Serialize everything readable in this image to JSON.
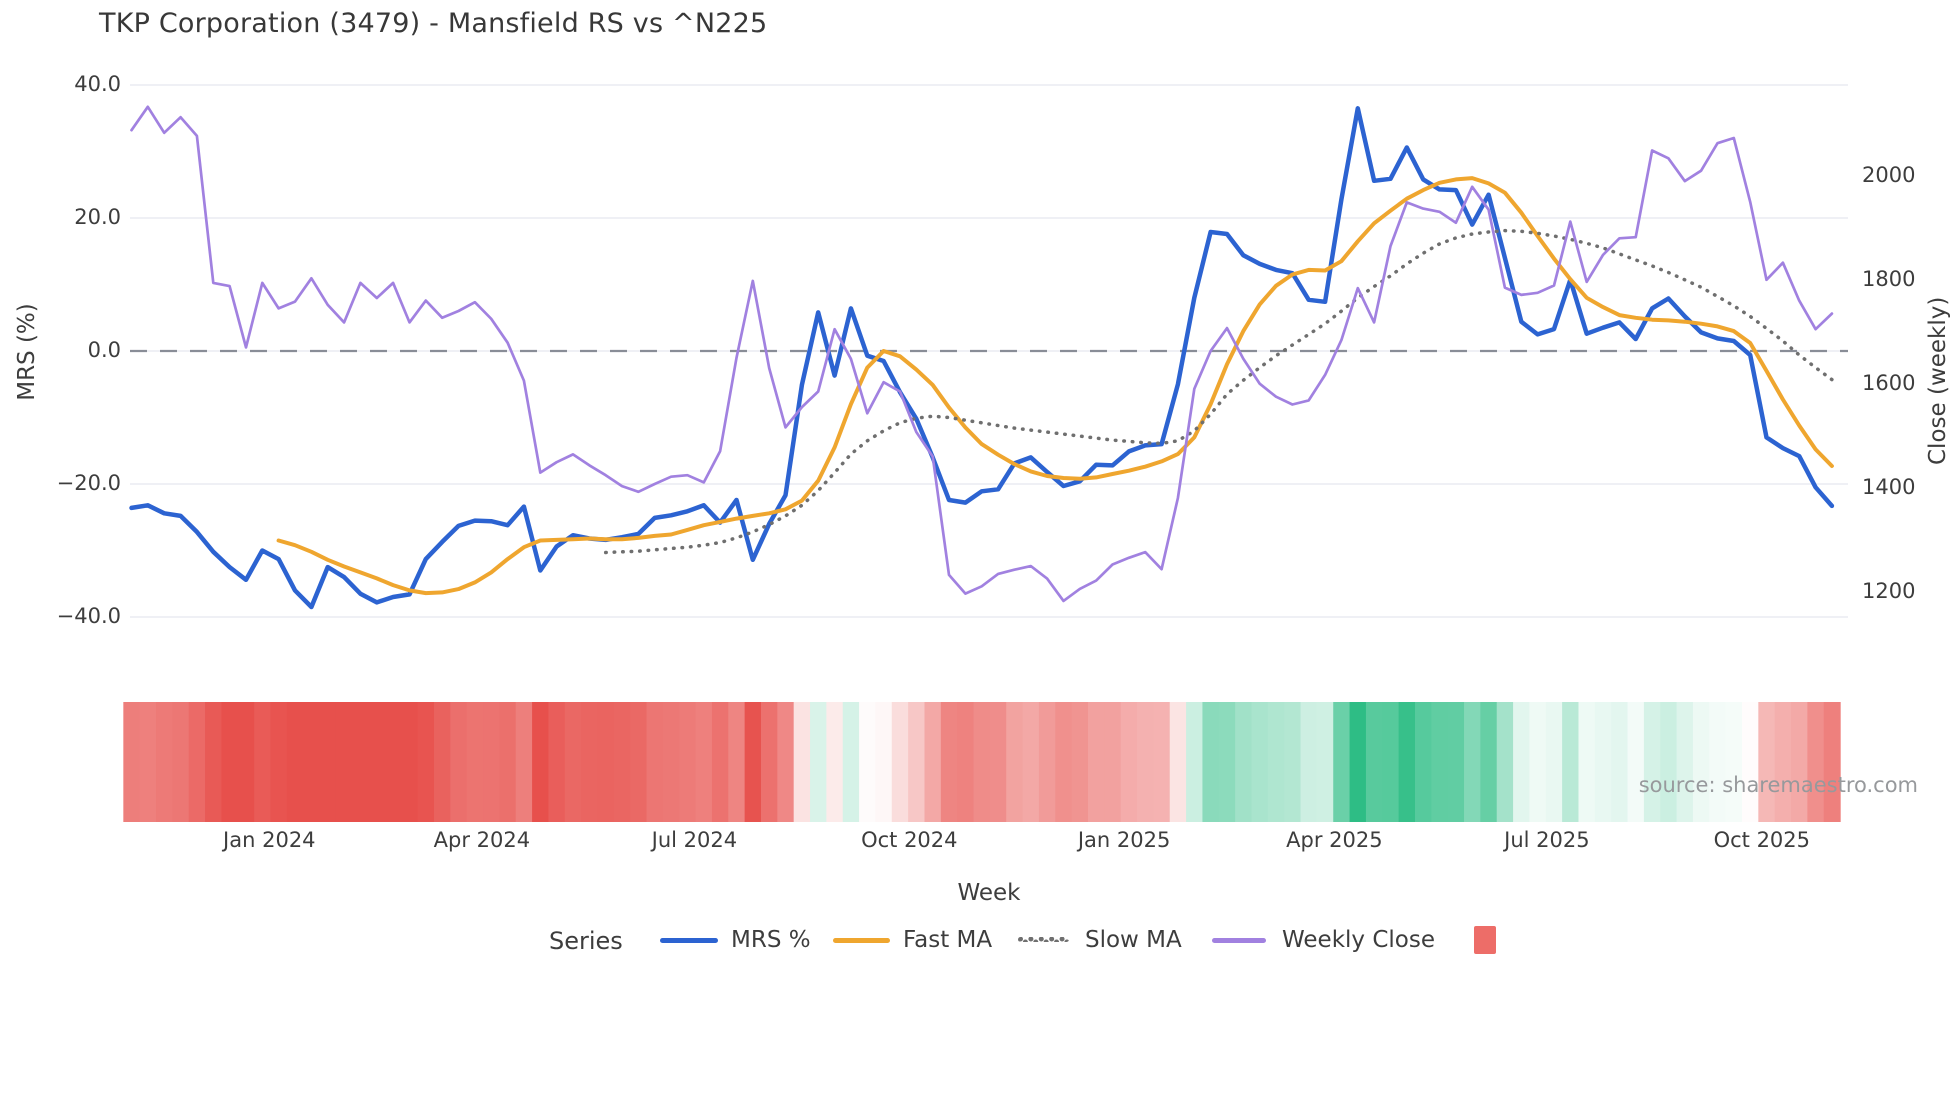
{
  "title": "TKP Corporation (3479) - Mansfield RS vs ^N225",
  "source": "source: sharemaestro.com",
  "axes": {
    "left": {
      "title": "MRS (%)",
      "tick_labels": [
        "40.0",
        "20.0",
        "0.0",
        "−20.0",
        "−40.0"
      ],
      "tick_values": [
        40,
        20,
        0,
        -20,
        -40
      ]
    },
    "right": {
      "title": "Close (weekly)",
      "tick_labels": [
        "2000",
        "1800",
        "1600",
        "1400",
        "1200"
      ],
      "tick_values": [
        2000,
        1800,
        1600,
        1400,
        1200
      ]
    },
    "x": {
      "title": "Week"
    }
  },
  "legend": {
    "title": "Series",
    "items": [
      {
        "label": "MRS %",
        "swatch": "line",
        "color": "#2c63d1"
      },
      {
        "label": "Fast MA",
        "swatch": "line",
        "color": "#efa62f"
      },
      {
        "label": "Slow MA",
        "swatch": "dotted",
        "color": "#6f6f6f"
      },
      {
        "label": "Weekly Close",
        "swatch": "line",
        "color": "#a181e0"
      },
      {
        "label": "",
        "swatch": "square",
        "color": "#ed6d68"
      }
    ]
  },
  "colors": {
    "grid": "#eaecf2",
    "zero_line": "#898d97",
    "heat_negative": "#e7504c",
    "heat_positive": "#2ebd85",
    "text": "#3d3d3d"
  },
  "chart_data": {
    "type": "line",
    "x": {
      "unit": "week_index",
      "count": 105,
      "ticks": [
        {
          "label": "Jan 2024",
          "week": 8.43
        },
        {
          "label": "Apr 2024",
          "week": 21.43
        },
        {
          "label": "Jul 2024",
          "week": 34.43
        },
        {
          "label": "Oct 2024",
          "week": 47.57
        },
        {
          "label": "Jan 2025",
          "week": 60.71
        },
        {
          "label": "Apr 2025",
          "week": 73.57
        },
        {
          "label": "Jul 2025",
          "week": 86.57
        },
        {
          "label": "Oct 2025",
          "week": 99.71
        }
      ]
    },
    "y_left": {
      "label": "MRS (%)",
      "ticks": [
        40,
        20,
        0,
        -20,
        -40
      ],
      "zero_line": true
    },
    "y_right": {
      "label": "Close (weekly)",
      "ticks": [
        2000,
        1800,
        1600,
        1400,
        1200
      ]
    },
    "series": [
      {
        "name": "MRS %",
        "axis": "left",
        "color": "#2c63d1",
        "style": "solid",
        "width": 4.5,
        "values": [
          -23.6,
          -23.2,
          -24.4,
          -24.8,
          -27.2,
          -30.2,
          -32.5,
          -34.4,
          -30.0,
          -31.3,
          -36.0,
          -38.5,
          -32.5,
          -34.0,
          -36.5,
          -37.8,
          -37.0,
          -36.6,
          -31.3,
          -28.7,
          -26.3,
          -25.5,
          -25.6,
          -26.2,
          -23.4,
          -33.0,
          -29.4,
          -27.7,
          -28.2,
          -28.4,
          -28.0,
          -27.5,
          -25.1,
          -24.7,
          -24.1,
          -23.2,
          -25.8,
          -22.4,
          -31.4,
          -26.0,
          -21.7,
          -5.1,
          5.8,
          -3.7,
          6.4,
          -0.7,
          -1.5,
          -6.2,
          -10.2,
          -16.0,
          -22.4,
          -22.8,
          -21.1,
          -20.8,
          -16.9,
          -16.0,
          -18.2,
          -20.3,
          -19.6,
          -17.1,
          -17.2,
          -15.1,
          -14.2,
          -14.0,
          -5.0,
          8.0,
          17.9,
          17.6,
          14.4,
          13.1,
          12.2,
          11.7,
          7.7,
          7.4,
          22.8,
          36.5,
          25.6,
          25.9,
          30.6,
          25.8,
          24.3,
          24.2,
          19.0,
          23.5,
          14.0,
          4.4,
          2.5,
          3.3,
          10.7,
          2.6,
          3.5,
          4.3,
          1.8,
          6.4,
          7.9,
          5.2,
          2.8,
          1.9,
          1.5,
          -0.6,
          -13.0,
          -14.6,
          -15.8,
          -20.5,
          -23.3
        ]
      },
      {
        "name": "Fast MA",
        "axis": "left",
        "color": "#efa62f",
        "style": "solid",
        "width": 4,
        "values": [
          null,
          null,
          null,
          null,
          null,
          null,
          null,
          null,
          null,
          -28.5,
          -29.2,
          -30.2,
          -31.4,
          -32.4,
          -33.3,
          -34.2,
          -35.2,
          -36.0,
          -36.4,
          -36.3,
          -35.8,
          -34.8,
          -33.3,
          -31.3,
          -29.5,
          -28.5,
          -28.4,
          -28.3,
          -28.2,
          -28.3,
          -28.3,
          -28.1,
          -27.8,
          -27.6,
          -26.9,
          -26.2,
          -25.7,
          -25.2,
          -24.8,
          -24.4,
          -23.8,
          -22.5,
          -19.5,
          -14.5,
          -8.0,
          -2.5,
          0.0,
          -0.8,
          -2.8,
          -5.1,
          -8.5,
          -11.5,
          -14.0,
          -15.6,
          -17.0,
          -18.1,
          -18.8,
          -19.1,
          -19.2,
          -19.0,
          -18.5,
          -18.0,
          -17.4,
          -16.6,
          -15.5,
          -13.0,
          -8.0,
          -2.0,
          3.0,
          7.0,
          9.8,
          11.5,
          12.2,
          12.1,
          13.5,
          16.5,
          19.2,
          21.1,
          22.9,
          24.2,
          25.3,
          25.8,
          26.0,
          25.2,
          23.8,
          20.8,
          17.3,
          13.9,
          10.8,
          8.0,
          6.6,
          5.4,
          5.0,
          4.7,
          4.6,
          4.4,
          4.1,
          3.7,
          3.0,
          1.2,
          -3.0,
          -7.3,
          -11.2,
          -14.8,
          -17.3
        ]
      },
      {
        "name": "Slow MA",
        "axis": "left",
        "color": "#6f6f6f",
        "style": "dotted",
        "width": 3.5,
        "values": [
          null,
          null,
          null,
          null,
          null,
          null,
          null,
          null,
          null,
          null,
          null,
          null,
          null,
          null,
          null,
          null,
          null,
          null,
          null,
          null,
          null,
          null,
          null,
          null,
          null,
          null,
          null,
          null,
          null,
          -30.3,
          -30.2,
          -30.1,
          -29.9,
          -29.7,
          -29.5,
          -29.2,
          -28.8,
          -28.1,
          -27.2,
          -26.1,
          -24.8,
          -23.2,
          -21.0,
          -18.3,
          -15.5,
          -13.5,
          -12.0,
          -10.8,
          -10.1,
          -9.8,
          -10.0,
          -10.4,
          -10.8,
          -11.2,
          -11.6,
          -11.9,
          -12.2,
          -12.5,
          -12.8,
          -13.1,
          -13.4,
          -13.6,
          -13.8,
          -13.9,
          -13.5,
          -12.0,
          -9.5,
          -6.5,
          -4.4,
          -2.5,
          -0.7,
          0.9,
          2.5,
          4.1,
          6.0,
          8.0,
          9.7,
          11.3,
          13.1,
          14.7,
          16.1,
          17.0,
          17.6,
          17.9,
          18.1,
          18.0,
          17.7,
          17.3,
          16.8,
          16.2,
          15.5,
          14.6,
          13.7,
          12.8,
          11.8,
          10.7,
          9.6,
          8.2,
          6.8,
          5.2,
          3.4,
          1.5,
          -0.6,
          -2.5,
          -4.3
        ]
      },
      {
        "name": "Weekly Close",
        "axis": "right",
        "color": "#a181e0",
        "style": "solid",
        "width": 2.7,
        "values": [
          2088,
          2133,
          2083,
          2113,
          2077,
          1794,
          1788,
          1670,
          1794,
          1745,
          1758,
          1803,
          1752,
          1718,
          1794,
          1765,
          1794,
          1718,
          1760,
          1727,
          1740,
          1757,
          1725,
          1679,
          1606,
          1429,
          1449,
          1464,
          1443,
          1424,
          1403,
          1392,
          1407,
          1421,
          1424,
          1410,
          1470,
          1650,
          1798,
          1630,
          1516,
          1555,
          1585,
          1705,
          1648,
          1543,
          1603,
          1585,
          1507,
          1460,
          1232,
          1196,
          1210,
          1234,
          1242,
          1249,
          1225,
          1182,
          1205,
          1221,
          1252,
          1265,
          1276,
          1243,
          1380,
          1590,
          1663,
          1707,
          1648,
          1600,
          1575,
          1560,
          1568,
          1617,
          1684,
          1784,
          1718,
          1865,
          1949,
          1937,
          1931,
          1910,
          1979,
          1935,
          1785,
          1771,
          1775,
          1789,
          1912,
          1796,
          1848,
          1880,
          1882,
          2049,
          2034,
          1990,
          2010,
          2063,
          2073,
          1950,
          1800,
          1833,
          1760,
          1705,
          1735
        ]
      }
    ],
    "heatmap": {
      "based_on": "MRS %",
      "colormap": "red-white-green",
      "negative_color": "#e7504c",
      "positive_color": "#2ebd85",
      "saturation_at_abs_value": 32
    }
  }
}
